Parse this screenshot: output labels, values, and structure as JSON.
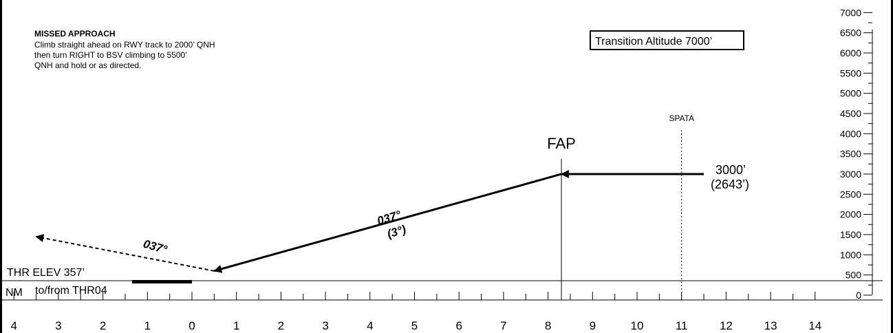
{
  "missed_approach": {
    "title": "MISSED APPROACH",
    "lines": [
      "Climb straight ahead on RWY track to 2000’ QNH",
      "then turn RIGHT to BSV climbing to 5500’",
      "QNH and hold or as directed."
    ]
  },
  "transition_altitude": "Transition Altitude 7000’",
  "threshold": {
    "elevation_label": "THR ELEV 357’",
    "nm_label": "NM",
    "distance_ref_label": "to/from THR04"
  },
  "fixes": [
    {
      "name": "FAP",
      "distance_nm": 8.3
    },
    {
      "name": "SPATA",
      "distance_nm": 11
    }
  ],
  "profile": {
    "track_label": "037°",
    "glide_angle_label": "(3°)",
    "missed_track_label": "037°",
    "initial_altitude_label": "3000’",
    "initial_height_label": "(2643’)",
    "initial_altitude_ft": 3000,
    "threshold_crossing_nm": 0.5,
    "threshold_crossing_ft": 600,
    "missed_end_nm": 3.5,
    "missed_end_ft": 1450,
    "entry_start_nm": 11.5
  },
  "altitude_scale": {
    "ticks": [
      "0",
      "500",
      "1000",
      "1500",
      "2000",
      "2500",
      "3000",
      "3500",
      "4000",
      "4500",
      "5000",
      "5500",
      "6000",
      "6500",
      "7000"
    ]
  },
  "distance_scale": {
    "labels": [
      "4",
      "3",
      "2",
      "1",
      "0",
      "1",
      "2",
      "3",
      "4",
      "5",
      "6",
      "7",
      "8",
      "9",
      "10",
      "11",
      "12",
      "13",
      "14"
    ]
  }
}
